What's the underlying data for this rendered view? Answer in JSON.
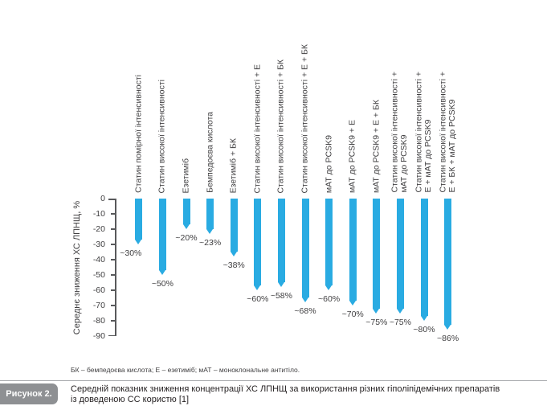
{
  "colors": {
    "arrow": "#29abe2",
    "axis": "#58595b",
    "text": "#414042",
    "figure_label_bg": "#8e9093",
    "divider": "#a7a9ac"
  },
  "chart_data": {
    "type": "bar",
    "title": "",
    "xlabel": "",
    "ylabel": "Середнє зниження ХС ЛПНЩ, %",
    "ylim": [
      0,
      -90
    ],
    "yticks": [
      0,
      -10,
      -20,
      -30,
      -40,
      -50,
      -60,
      -70,
      -80,
      -90
    ],
    "grid": false,
    "legend": "none",
    "bar_style": "downward-arrow",
    "categories": [
      "Статин помірної інтенсивності",
      "Статин високої інтенсивності",
      "Езетиміб",
      "Бемпедоєва кислота",
      "Езетиміб + БК",
      "Статин високої інтенсивності + Е",
      "Статин високої інтенсивності + БК",
      "Статин високої інтенсивності + Е + БК",
      "мАТ до PCSK9",
      "мАТ до PCSK9 + Е",
      "мАТ до PCSK9 + Е + БК",
      "Статин високої інтенсивності +\nмАТ до PCSK9",
      "Статин високої інтенсивності +\nЕ + мАТ до PCSK9",
      "Статин високої інтенсивності +\nЕ + БК + мАТ до PCSK9"
    ],
    "values": [
      -30,
      -50,
      -20,
      -23,
      -38,
      -60,
      -58,
      -68,
      -60,
      -70,
      -75,
      -75,
      -80,
      -86
    ],
    "value_labels": [
      "~30%",
      "~50%",
      "~20%",
      "~23%",
      "~38%",
      "~60%",
      "~58%",
      "~68%",
      "~60%",
      "~70%",
      "~75%",
      "~75%",
      "~80%",
      "~86%"
    ]
  },
  "footnote": "БК – бемпедоєва кислота; Е – езетиміб; мАТ – моноклональне антитіло.",
  "figure": {
    "label": "Рисунок 2.",
    "caption": "Середній показник зниження концентрації ХС ЛПНЩ за використання різних гіполіпідемічних препаратів\nіз доведеною СС користю [1]"
  }
}
